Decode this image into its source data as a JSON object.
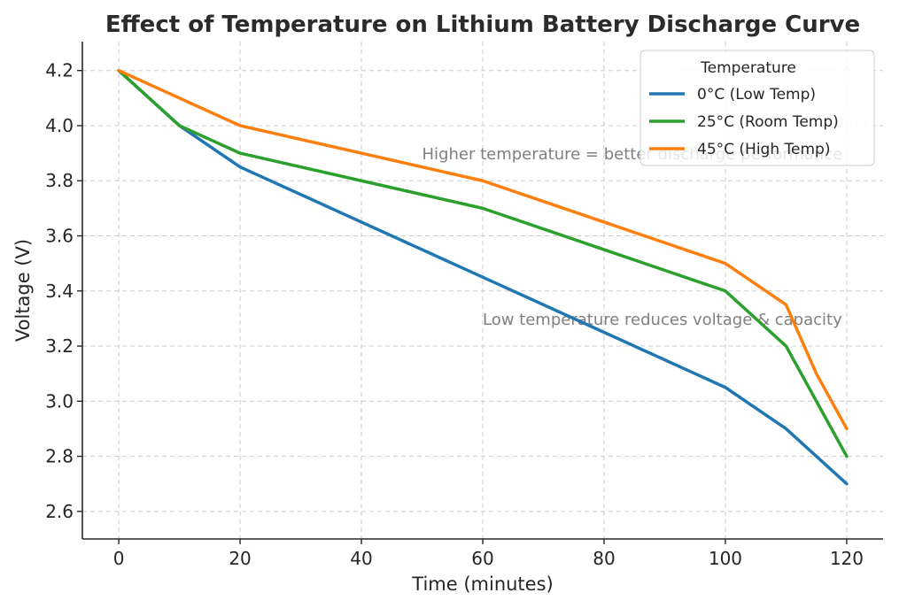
{
  "chart_data": {
    "type": "line",
    "title": "Effect of Temperature on Lithium Battery Discharge Curve",
    "xlabel": "Time (minutes)",
    "ylabel": "Voltage (V)",
    "xlim": [
      -6,
      126
    ],
    "ylim": [
      2.5,
      4.305
    ],
    "xticks": [
      0,
      20,
      40,
      60,
      80,
      100,
      120
    ],
    "yticks": [
      2.6,
      2.8,
      3.0,
      3.2,
      3.4,
      3.6,
      3.8,
      4.0,
      4.2
    ],
    "xtick_labels": [
      "0",
      "20",
      "40",
      "60",
      "80",
      "100",
      "120"
    ],
    "ytick_labels": [
      "2.6",
      "2.8",
      "3.0",
      "3.2",
      "3.4",
      "3.6",
      "3.8",
      "4.0",
      "4.2"
    ],
    "grid": true,
    "legend": {
      "title": "Temperature",
      "position": "top-right"
    },
    "series": [
      {
        "name": "0°C (Low Temp)",
        "color": "#1f77b4",
        "x": [
          0,
          10,
          20,
          40,
          60,
          80,
          100,
          110,
          120
        ],
        "y": [
          4.2,
          4.0,
          3.85,
          3.65,
          3.45,
          3.25,
          3.05,
          2.9,
          2.7
        ]
      },
      {
        "name": "25°C (Room Temp)",
        "color": "#2ca02c",
        "x": [
          0,
          10,
          20,
          40,
          60,
          80,
          100,
          110,
          120
        ],
        "y": [
          4.2,
          4.0,
          3.9,
          3.8,
          3.7,
          3.55,
          3.4,
          3.2,
          2.8
        ]
      },
      {
        "name": "45°C (High Temp)",
        "color": "#ff7f0e",
        "x": [
          0,
          10,
          20,
          40,
          60,
          80,
          100,
          110,
          115,
          120
        ],
        "y": [
          4.2,
          4.1,
          4.0,
          3.9,
          3.8,
          3.65,
          3.5,
          3.35,
          3.1,
          2.9
        ]
      }
    ],
    "annotations": [
      {
        "text": "Higher temperature = better discharge performance",
        "x": 50,
        "y": 3.9
      },
      {
        "text": "Low temperature reduces voltage & capacity",
        "x": 60,
        "y": 3.3
      }
    ]
  }
}
